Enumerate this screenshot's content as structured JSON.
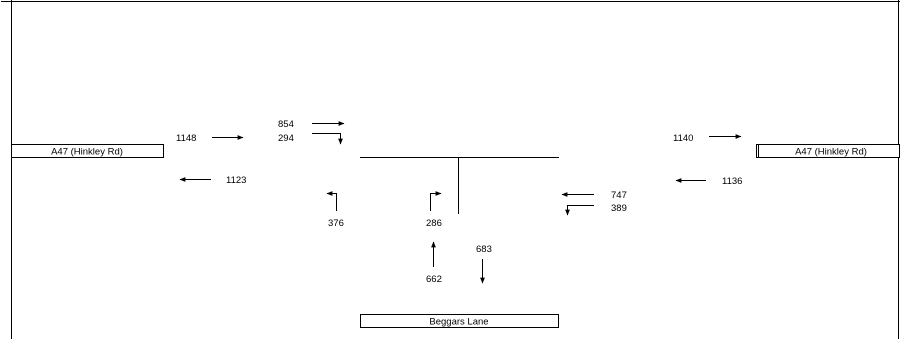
{
  "roads": {
    "west": "A47 (Hinkley Rd)",
    "east": "A47 (Hinkley Rd)",
    "south": "Beggars Lane"
  },
  "flows": {
    "west_in": "1148",
    "west_out": "1123",
    "west_arm_straight": "854",
    "west_arm_right": "294",
    "south_arm_left": "376",
    "south_arm_right": "286",
    "south_in": "662",
    "south_out": "683",
    "east_arm_straight": "747",
    "east_arm_left": "389",
    "east_in": "1136",
    "east_out": "1140"
  }
}
